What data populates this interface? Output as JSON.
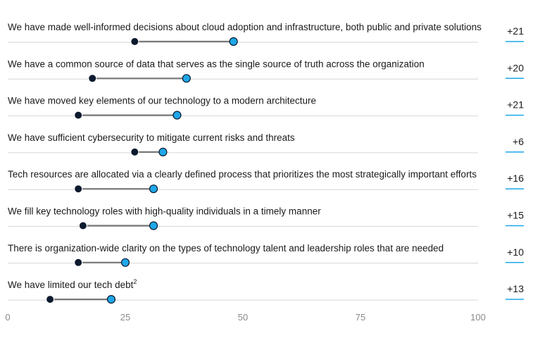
{
  "chart_data": {
    "type": "dumbbell",
    "xlim": [
      0,
      100
    ],
    "x_ticks": [
      "0",
      "25",
      "50",
      "75",
      "100"
    ],
    "grid": false,
    "colors": {
      "start": "#0b1a2e",
      "end": "#1ea7e8",
      "connector": "#7a7a7a",
      "baseline": "#d6d6d6",
      "delta_underline": "#1ea7e8"
    },
    "rows": [
      {
        "label": "We have made well-informed decisions about cloud adoption and infrastructure, both public and private solutions",
        "footnote": "",
        "start": 27,
        "end": 48,
        "delta": "+21"
      },
      {
        "label": "We have a common source of data that serves as the single source of truth across the organization",
        "footnote": "",
        "start": 18,
        "end": 38,
        "delta": "+20"
      },
      {
        "label": "We have moved key elements of our technology to a modern architecture",
        "footnote": "",
        "start": 15,
        "end": 36,
        "delta": "+21"
      },
      {
        "label": "We have sufficient cybersecurity to mitigate current risks and threats",
        "footnote": "",
        "start": 27,
        "end": 33,
        "delta": "+6"
      },
      {
        "label": "Tech resources are allocated via a clearly defined process that prioritizes the most strategically important efforts",
        "footnote": "",
        "start": 15,
        "end": 31,
        "delta": "+16"
      },
      {
        "label": "We fill key technology roles with high-quality individuals in a timely manner",
        "footnote": "",
        "start": 16,
        "end": 31,
        "delta": "+15"
      },
      {
        "label": "There is organization-wide clarity on the types of technology talent and leadership roles that are needed",
        "footnote": "",
        "start": 15,
        "end": 25,
        "delta": "+10"
      },
      {
        "label": "We have limited our tech debt",
        "footnote": "2",
        "start": 9,
        "end": 22,
        "delta": "+13"
      }
    ]
  }
}
